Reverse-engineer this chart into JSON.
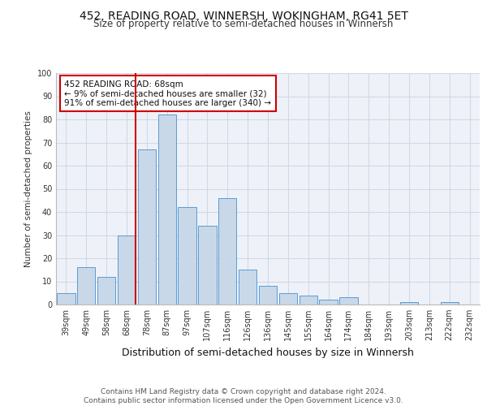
{
  "title": "452, READING ROAD, WINNERSH, WOKINGHAM, RG41 5ET",
  "subtitle": "Size of property relative to semi-detached houses in Winnersh",
  "xlabel": "Distribution of semi-detached houses by size in Winnersh",
  "ylabel": "Number of semi-detached properties",
  "categories": [
    "39sqm",
    "49sqm",
    "58sqm",
    "68sqm",
    "78sqm",
    "87sqm",
    "97sqm",
    "107sqm",
    "116sqm",
    "126sqm",
    "136sqm",
    "145sqm",
    "155sqm",
    "164sqm",
    "174sqm",
    "184sqm",
    "193sqm",
    "203sqm",
    "213sqm",
    "222sqm",
    "232sqm"
  ],
  "values": [
    5,
    16,
    12,
    30,
    67,
    82,
    42,
    34,
    46,
    15,
    8,
    5,
    4,
    2,
    3,
    0,
    0,
    1,
    0,
    1,
    0
  ],
  "bar_color": "#c8d8e8",
  "bar_edge_color": "#5b9bd5",
  "vline_x_index": 3,
  "vline_color": "#cc0000",
  "annotation_text": "452 READING ROAD: 68sqm\n← 9% of semi-detached houses are smaller (32)\n91% of semi-detached houses are larger (340) →",
  "annotation_box_color": "#ffffff",
  "annotation_box_edge": "#cc0000",
  "ylim": [
    0,
    100
  ],
  "yticks": [
    0,
    10,
    20,
    30,
    40,
    50,
    60,
    70,
    80,
    90,
    100
  ],
  "grid_color": "#d0d8e8",
  "background_color": "#eef2f8",
  "footer": "Contains HM Land Registry data © Crown copyright and database right 2024.\nContains public sector information licensed under the Open Government Licence v3.0.",
  "title_fontsize": 10,
  "subtitle_fontsize": 8.5,
  "axis_label_fontsize": 8,
  "ylabel_fontsize": 7.5,
  "tick_fontsize": 7,
  "footer_fontsize": 6.5,
  "annotation_fontsize": 7.5
}
